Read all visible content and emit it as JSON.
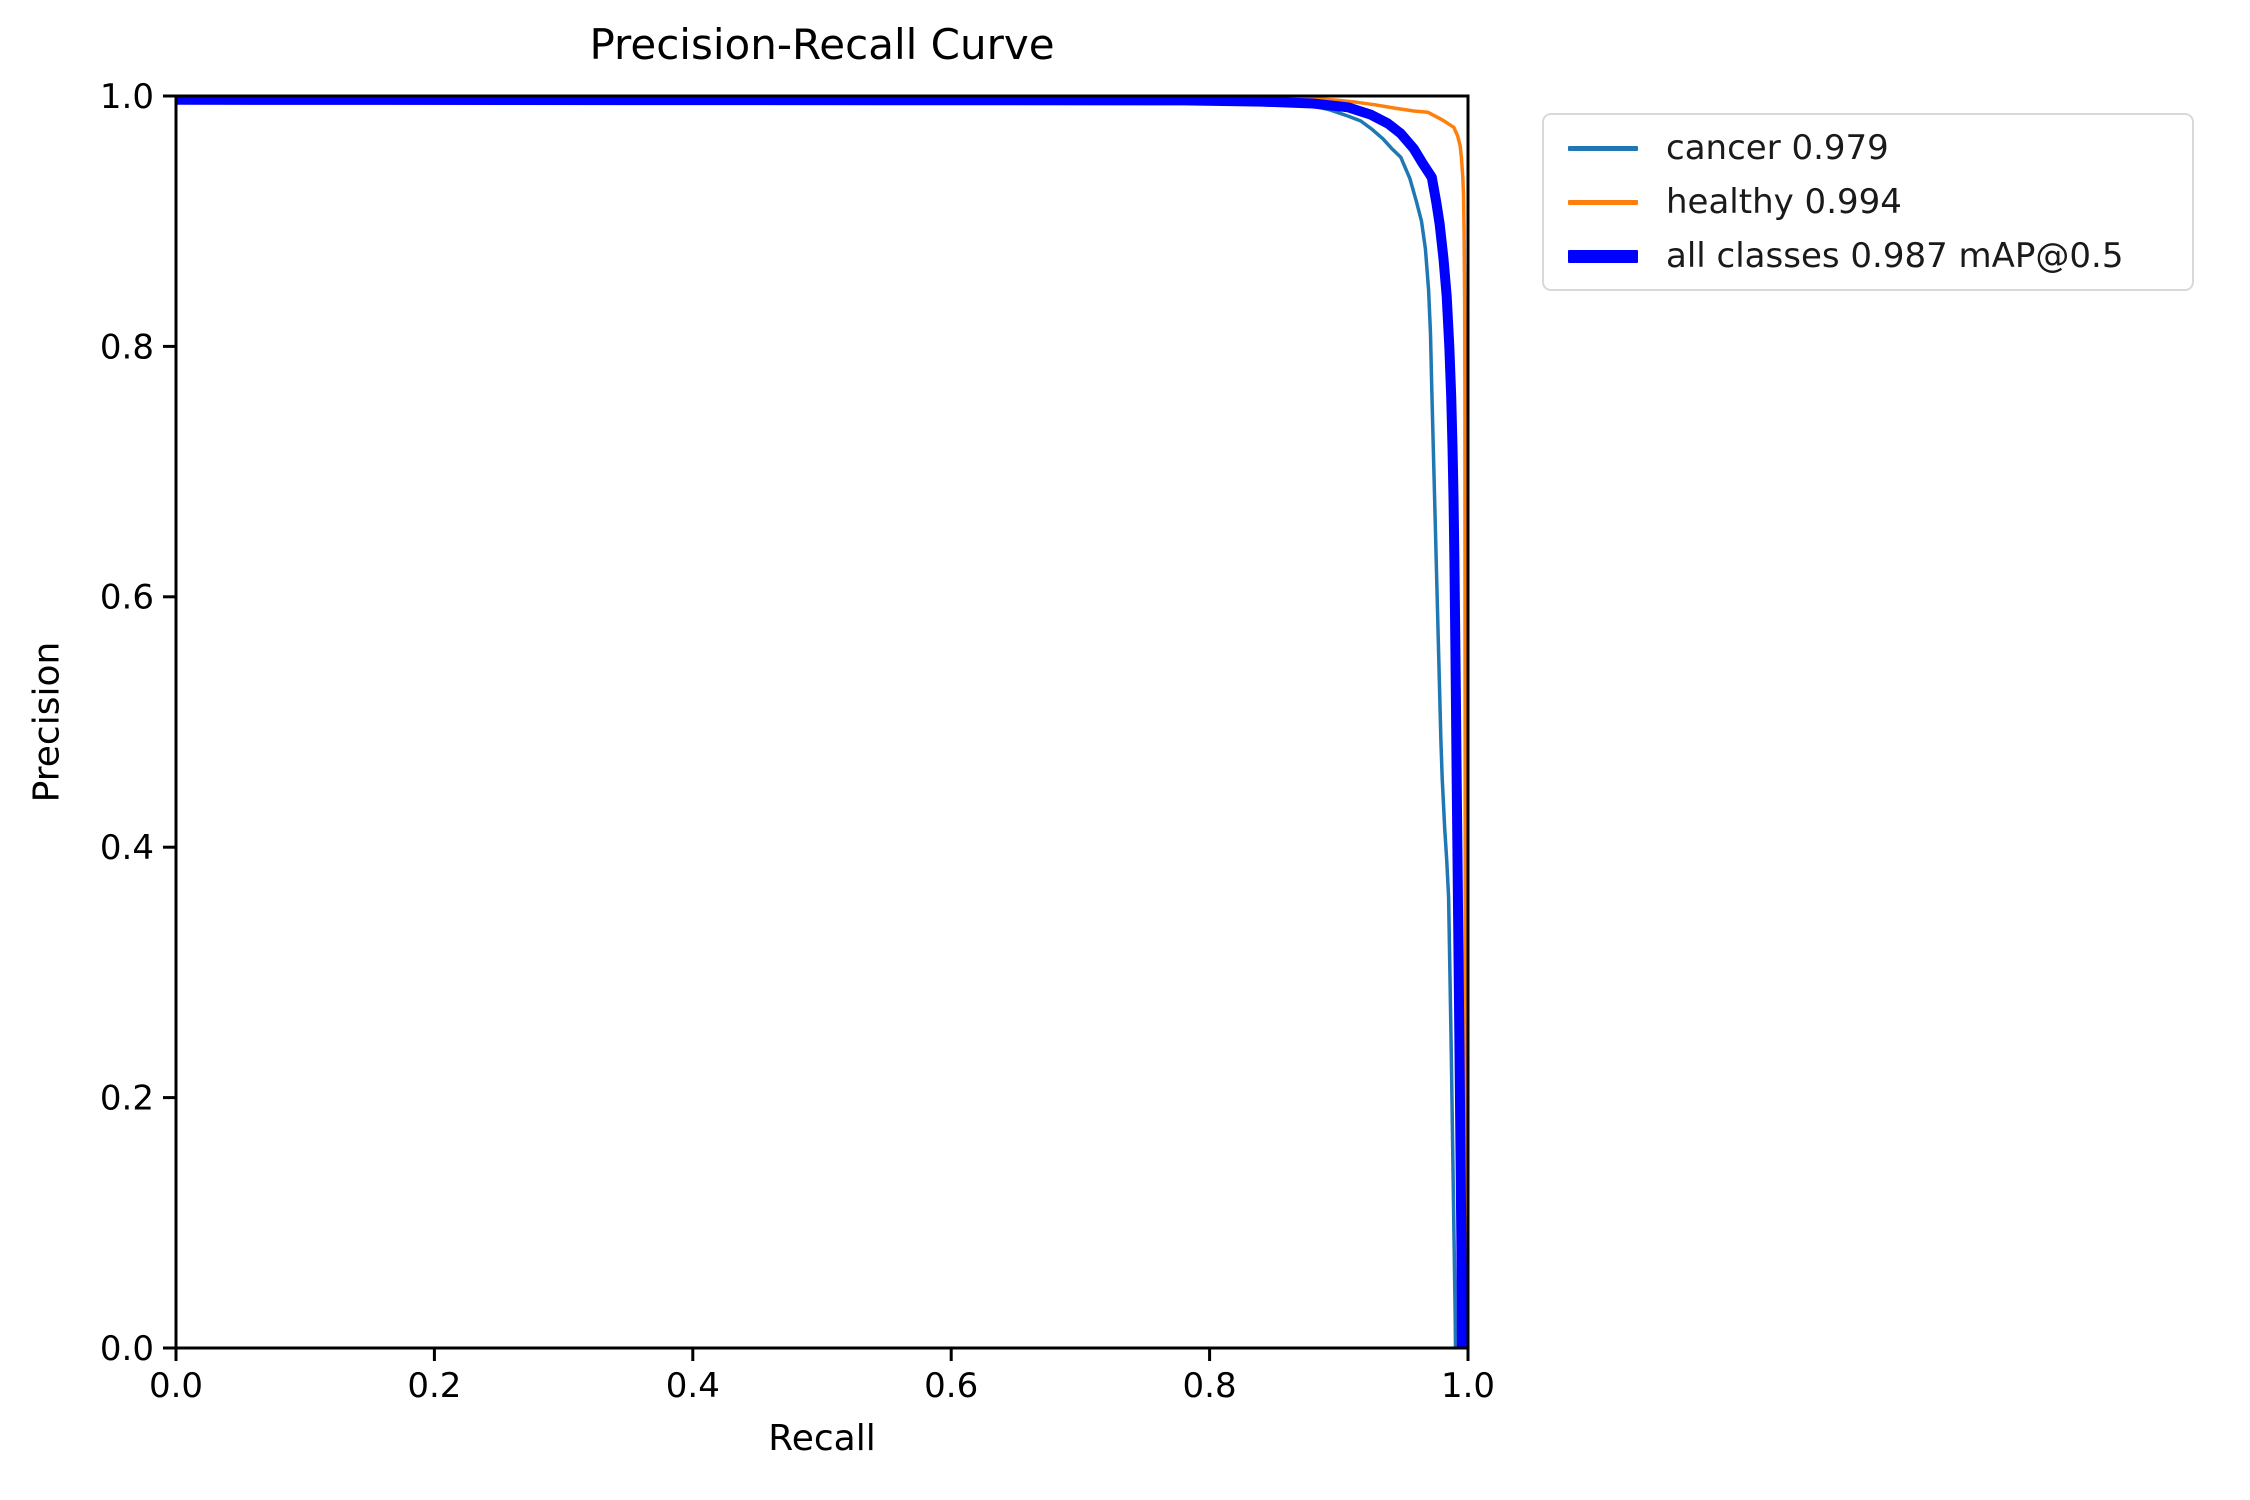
{
  "chart_data": {
    "type": "line",
    "title": "Precision-Recall Curve",
    "xlabel": "Recall",
    "ylabel": "Precision",
    "xlim": [
      0.0,
      1.0
    ],
    "ylim": [
      0.0,
      1.0
    ],
    "grid": false,
    "legend_position": "outside-upper-right",
    "x_tick_labels": [
      "0.0",
      "0.2",
      "0.4",
      "0.6",
      "0.8",
      "1.0"
    ],
    "x_tick_values": [
      0.0,
      0.2,
      0.4,
      0.6,
      0.8,
      1.0
    ],
    "y_tick_labels": [
      "0.0",
      "0.2",
      "0.4",
      "0.6",
      "0.8",
      "1.0"
    ],
    "y_tick_values": [
      0.0,
      0.2,
      0.4,
      0.6,
      0.8,
      1.0
    ],
    "series": [
      {
        "name": "cancer",
        "label": "cancer 0.979",
        "ap": 0.979,
        "color": "#1f77b4",
        "weight": "thin",
        "points": [
          [
            0.0,
            0.9985
          ],
          [
            0.7,
            0.998
          ],
          [
            0.78,
            0.9975
          ],
          [
            0.82,
            0.997
          ],
          [
            0.85,
            0.9962
          ],
          [
            0.866,
            0.995
          ],
          [
            0.88,
            0.992
          ],
          [
            0.893,
            0.989
          ],
          [
            0.907,
            0.984
          ],
          [
            0.917,
            0.98
          ],
          [
            0.925,
            0.974
          ],
          [
            0.934,
            0.966
          ],
          [
            0.941,
            0.958
          ],
          [
            0.948,
            0.951
          ],
          [
            0.955,
            0.934
          ],
          [
            0.96,
            0.916
          ],
          [
            0.964,
            0.9
          ],
          [
            0.967,
            0.878
          ],
          [
            0.9695,
            0.845
          ],
          [
            0.971,
            0.81
          ],
          [
            0.972,
            0.765
          ],
          [
            0.973,
            0.725
          ],
          [
            0.974,
            0.685
          ],
          [
            0.975,
            0.645
          ],
          [
            0.976,
            0.605
          ],
          [
            0.977,
            0.565
          ],
          [
            0.978,
            0.525
          ],
          [
            0.979,
            0.485
          ],
          [
            0.98,
            0.455
          ],
          [
            0.982,
            0.415
          ],
          [
            0.9835,
            0.39
          ],
          [
            0.985,
            0.36
          ],
          [
            0.986,
            0.3
          ],
          [
            0.987,
            0.24
          ],
          [
            0.988,
            0.17
          ],
          [
            0.989,
            0.1
          ],
          [
            0.99,
            0.03
          ],
          [
            0.9903,
            0.0
          ]
        ]
      },
      {
        "name": "healthy",
        "label": "healthy 0.994",
        "ap": 0.994,
        "color": "#ff7f0e",
        "weight": "thin",
        "points": [
          [
            0.0,
            0.9985
          ],
          [
            0.86,
            0.9985
          ],
          [
            0.881,
            0.998
          ],
          [
            0.9,
            0.9965
          ],
          [
            0.914,
            0.995
          ],
          [
            0.928,
            0.993
          ],
          [
            0.945,
            0.99
          ],
          [
            0.958,
            0.988
          ],
          [
            0.969,
            0.987
          ],
          [
            0.98,
            0.981
          ],
          [
            0.986,
            0.977
          ],
          [
            0.989,
            0.975
          ],
          [
            0.992,
            0.968
          ],
          [
            0.994,
            0.96
          ],
          [
            0.995,
            0.95
          ],
          [
            0.996,
            0.935
          ],
          [
            0.9965,
            0.922
          ],
          [
            0.997,
            0.89
          ],
          [
            0.9974,
            0.84
          ],
          [
            0.9976,
            0.76
          ],
          [
            0.9977,
            0.6
          ],
          [
            0.9978,
            0.4
          ],
          [
            0.9979,
            0.2
          ],
          [
            0.9979,
            0.0
          ]
        ]
      },
      {
        "name": "all classes",
        "label": "all classes 0.987 mAP@0.5",
        "ap": 0.987,
        "map_at": "mAP@0.5",
        "color": "#0000ff",
        "weight": "thick",
        "points": [
          [
            0.0,
            0.997
          ],
          [
            0.78,
            0.9965
          ],
          [
            0.84,
            0.9955
          ],
          [
            0.88,
            0.994
          ],
          [
            0.907,
            0.991
          ],
          [
            0.925,
            0.985
          ],
          [
            0.938,
            0.978
          ],
          [
            0.948,
            0.97
          ],
          [
            0.958,
            0.958
          ],
          [
            0.965,
            0.946
          ],
          [
            0.972,
            0.935
          ],
          [
            0.9755,
            0.915
          ],
          [
            0.978,
            0.898
          ],
          [
            0.981,
            0.87
          ],
          [
            0.9835,
            0.84
          ],
          [
            0.9855,
            0.8
          ],
          [
            0.987,
            0.76
          ],
          [
            0.988,
            0.72
          ],
          [
            0.9888,
            0.68
          ],
          [
            0.9895,
            0.63
          ],
          [
            0.99,
            0.58
          ],
          [
            0.9906,
            0.52
          ],
          [
            0.9912,
            0.46
          ],
          [
            0.9918,
            0.4
          ],
          [
            0.9925,
            0.33
          ],
          [
            0.9932,
            0.26
          ],
          [
            0.994,
            0.18
          ],
          [
            0.9948,
            0.09
          ],
          [
            0.9952,
            0.02
          ],
          [
            0.9953,
            0.0
          ]
        ]
      }
    ]
  }
}
